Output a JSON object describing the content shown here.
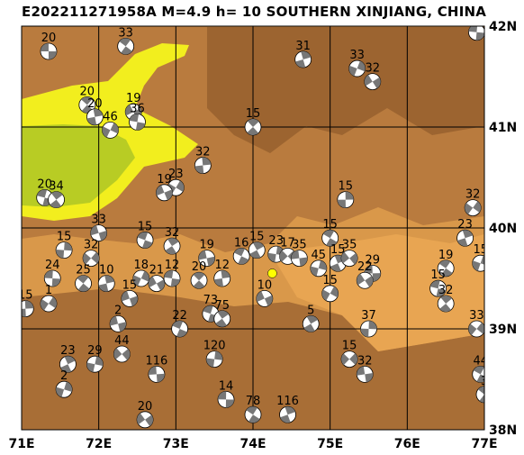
{
  "title": "E202211271958A M=4.9 h= 10 SOUTHERN XINJIANG, CHINA",
  "map": {
    "lon_min": 71,
    "lon_max": 77,
    "lat_min": 38,
    "lat_max": 42,
    "lon_ticks": [
      "71E",
      "72E",
      "73E",
      "74E",
      "75E",
      "76E",
      "77E"
    ],
    "lat_ticks": [
      "42N",
      "41N",
      "40N",
      "39N",
      "38N"
    ],
    "colors": {
      "lowland_yellow": "#f2ee1e",
      "lowland_green": "#b8cc24",
      "plain": "#e0a04a",
      "mountain": "#b87a3c",
      "high_mountain": "#8e5a2a",
      "grid": "#000000",
      "target_event": "#ffff00"
    },
    "target_event": {
      "lon": 74.25,
      "lat": 39.55
    },
    "mechanisms": [
      {
        "label": "20",
        "lon": 71.35,
        "lat": 41.75
      },
      {
        "label": "33",
        "lon": 72.35,
        "lat": 41.8
      },
      {
        "label": "31",
        "lon": 74.65,
        "lat": 41.67
      },
      {
        "label": "33",
        "lon": 75.35,
        "lat": 41.58
      },
      {
        "label": "32",
        "lon": 75.55,
        "lat": 41.45
      },
      {
        "label": "33",
        "lon": 76.9,
        "lat": 41.94
      },
      {
        "label": "20",
        "lon": 71.85,
        "lat": 41.22
      },
      {
        "label": "20",
        "lon": 71.95,
        "lat": 41.1
      },
      {
        "label": "46",
        "lon": 72.15,
        "lat": 40.97
      },
      {
        "label": "19",
        "lon": 72.45,
        "lat": 41.15
      },
      {
        "label": "36",
        "lon": 72.5,
        "lat": 41.05
      },
      {
        "label": "15",
        "lon": 74.0,
        "lat": 41.0
      },
      {
        "label": "32",
        "lon": 73.35,
        "lat": 40.62
      },
      {
        "label": "23",
        "lon": 73.0,
        "lat": 40.4
      },
      {
        "label": "19",
        "lon": 72.85,
        "lat": 40.35
      },
      {
        "label": "20",
        "lon": 71.3,
        "lat": 40.3
      },
      {
        "label": "34",
        "lon": 71.45,
        "lat": 40.28
      },
      {
        "label": "15",
        "lon": 75.2,
        "lat": 40.28
      },
      {
        "label": "32",
        "lon": 76.85,
        "lat": 40.2
      },
      {
        "label": "33",
        "lon": 72.0,
        "lat": 39.95
      },
      {
        "label": "15",
        "lon": 72.6,
        "lat": 39.88
      },
      {
        "label": "32",
        "lon": 72.95,
        "lat": 39.82
      },
      {
        "label": "15",
        "lon": 71.55,
        "lat": 39.78
      },
      {
        "label": "32",
        "lon": 71.9,
        "lat": 39.7
      },
      {
        "label": "19",
        "lon": 73.4,
        "lat": 39.7
      },
      {
        "label": "16",
        "lon": 73.85,
        "lat": 39.72
      },
      {
        "label": "15",
        "lon": 74.05,
        "lat": 39.78
      },
      {
        "label": "23",
        "lon": 74.3,
        "lat": 39.74
      },
      {
        "label": "17",
        "lon": 74.45,
        "lat": 39.72
      },
      {
        "label": "35",
        "lon": 74.6,
        "lat": 39.7
      },
      {
        "label": "15",
        "lon": 75.0,
        "lat": 39.9
      },
      {
        "label": "15",
        "lon": 75.1,
        "lat": 39.65
      },
      {
        "label": "45",
        "lon": 74.85,
        "lat": 39.6
      },
      {
        "label": "35",
        "lon": 75.25,
        "lat": 39.7
      },
      {
        "label": "29",
        "lon": 75.55,
        "lat": 39.55
      },
      {
        "label": "19",
        "lon": 76.5,
        "lat": 39.6
      },
      {
        "label": "23",
        "lon": 76.75,
        "lat": 39.9
      },
      {
        "label": "15",
        "lon": 76.95,
        "lat": 39.65
      },
      {
        "label": "22",
        "lon": 75.45,
        "lat": 39.48
      },
      {
        "label": "24",
        "lon": 71.4,
        "lat": 39.5
      },
      {
        "label": "25",
        "lon": 71.8,
        "lat": 39.45
      },
      {
        "label": "10",
        "lon": 72.1,
        "lat": 39.45
      },
      {
        "label": "18",
        "lon": 72.55,
        "lat": 39.5
      },
      {
        "label": "21",
        "lon": 72.75,
        "lat": 39.45
      },
      {
        "label": "12",
        "lon": 72.95,
        "lat": 39.5
      },
      {
        "label": "20",
        "lon": 73.3,
        "lat": 39.48
      },
      {
        "label": "12",
        "lon": 73.6,
        "lat": 39.5
      },
      {
        "label": "15",
        "lon": 75.0,
        "lat": 39.35
      },
      {
        "label": "10",
        "lon": 74.15,
        "lat": 39.3
      },
      {
        "label": "15",
        "lon": 76.4,
        "lat": 39.4
      },
      {
        "label": "32",
        "lon": 76.5,
        "lat": 39.25
      },
      {
        "label": "15",
        "lon": 71.05,
        "lat": 39.2
      },
      {
        "label": "1",
        "lon": 71.35,
        "lat": 39.25
      },
      {
        "label": "15",
        "lon": 72.4,
        "lat": 39.3
      },
      {
        "label": "73",
        "lon": 73.45,
        "lat": 39.15
      },
      {
        "label": "75",
        "lon": 73.6,
        "lat": 39.1
      },
      {
        "label": "37",
        "lon": 75.5,
        "lat": 39.0
      },
      {
        "label": "33",
        "lon": 76.9,
        "lat": 39.0
      },
      {
        "label": "2",
        "lon": 72.25,
        "lat": 39.05
      },
      {
        "label": "22",
        "lon": 73.05,
        "lat": 39.0
      },
      {
        "label": "5",
        "lon": 74.75,
        "lat": 39.05
      },
      {
        "label": "120",
        "lon": 73.5,
        "lat": 38.7
      },
      {
        "label": "15",
        "lon": 75.25,
        "lat": 38.7
      },
      {
        "label": "32",
        "lon": 75.45,
        "lat": 38.55
      },
      {
        "label": "44",
        "lon": 76.95,
        "lat": 38.55
      },
      {
        "label": "23",
        "lon": 71.6,
        "lat": 38.65
      },
      {
        "label": "29",
        "lon": 71.95,
        "lat": 38.65
      },
      {
        "label": "44",
        "lon": 72.3,
        "lat": 38.75
      },
      {
        "label": "116",
        "lon": 72.75,
        "lat": 38.55
      },
      {
        "label": "78",
        "lon": 74.0,
        "lat": 38.15
      },
      {
        "label": "116",
        "lon": 74.45,
        "lat": 38.15
      },
      {
        "label": "2",
        "lon": 71.55,
        "lat": 38.4
      },
      {
        "label": "20",
        "lon": 72.6,
        "lat": 38.1
      },
      {
        "label": "14",
        "lon": 73.65,
        "lat": 38.3
      },
      {
        "label": "3",
        "lon": 77.0,
        "lat": 38.35
      }
    ]
  }
}
